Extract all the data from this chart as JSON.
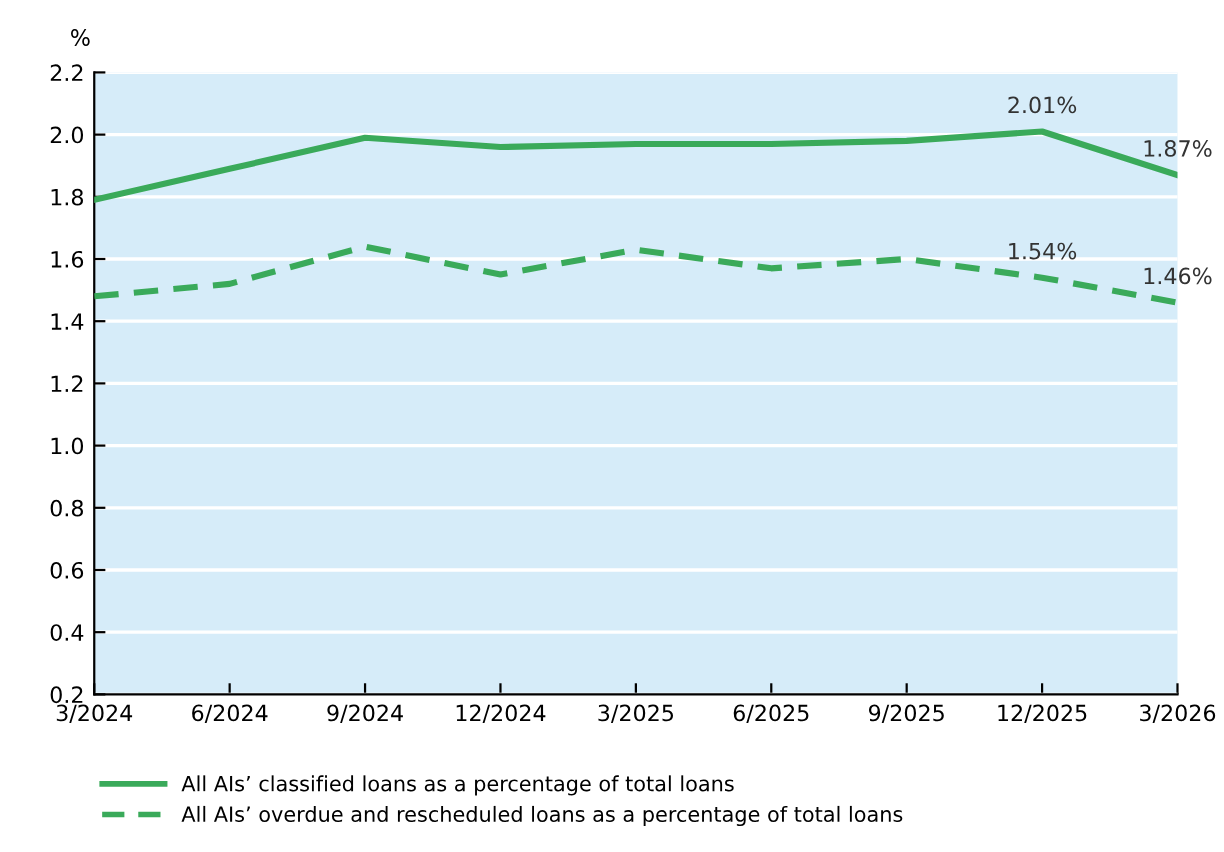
{
  "chart_data": {
    "type": "line",
    "ylabel": "%",
    "categories": [
      "3/2024",
      "6/2024",
      "9/2024",
      "12/2024",
      "3/2025",
      "6/2025",
      "9/2025",
      "12/2025",
      "3/2026"
    ],
    "series": [
      {
        "name": "All AIs’ classified loans as a percentage of total loans",
        "color": "#3aaa5a",
        "line_style": "solid",
        "values": [
          1.79,
          1.89,
          1.99,
          1.96,
          1.97,
          1.97,
          1.98,
          2.01,
          1.87
        ],
        "value_labels": [
          null,
          null,
          null,
          null,
          null,
          null,
          null,
          "2.01%",
          "1.87%"
        ]
      },
      {
        "name": "All AIs’ overdue and rescheduled loans as a percentage of total loans",
        "color": "#3aaa5a",
        "line_style": "dashed",
        "values": [
          1.48,
          1.52,
          1.64,
          1.55,
          1.63,
          1.57,
          1.6,
          1.54,
          1.46
        ],
        "value_labels": [
          null,
          null,
          null,
          null,
          null,
          null,
          null,
          "1.54%",
          "1.46%"
        ]
      }
    ],
    "ylim": [
      0.2,
      2.2
    ],
    "yticks": [
      {
        "value": 0.2,
        "label": "0.2"
      },
      {
        "value": 0.4,
        "label": "0.4"
      },
      {
        "value": 0.6,
        "label": "0.6"
      },
      {
        "value": 0.8,
        "label": "0.8"
      },
      {
        "value": 1.0,
        "label": "1.0"
      },
      {
        "value": 1.2,
        "label": "1.2"
      },
      {
        "value": 1.4,
        "label": "1.4"
      },
      {
        "value": 1.6,
        "label": "1.6"
      },
      {
        "value": 1.8,
        "label": "1.8"
      },
      {
        "value": 2.0,
        "label": "2.0"
      },
      {
        "value": 2.2,
        "label": "2.2"
      }
    ],
    "grid": "y",
    "legend": "bottom",
    "marker": "none"
  }
}
